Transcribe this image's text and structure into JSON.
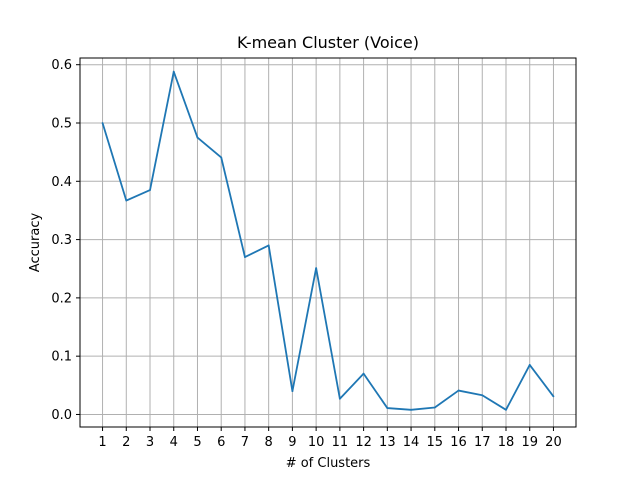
{
  "chart_data": {
    "type": "line",
    "title": "K-mean Cluster (Voice)",
    "xlabel": "# of Clusters",
    "ylabel": "Accuracy",
    "x": [
      1,
      2,
      3,
      4,
      5,
      6,
      7,
      8,
      9,
      10,
      11,
      12,
      13,
      14,
      15,
      16,
      17,
      18,
      19,
      20
    ],
    "series": [
      {
        "values": [
          0.5,
          0.367,
          0.385,
          0.588,
          0.475,
          0.441,
          0.27,
          0.29,
          0.04,
          0.251,
          0.027,
          0.07,
          0.011,
          0.008,
          0.012,
          0.041,
          0.033,
          0.008,
          0.085,
          0.031
        ],
        "color": "#1f77b4"
      }
    ],
    "xlim": [
      0.05,
      20.95
    ],
    "ylim": [
      -0.0215,
      0.6115
    ],
    "yticks": [
      0.0,
      0.1,
      0.2,
      0.3,
      0.4,
      0.5,
      0.6
    ],
    "ytick_labels": [
      "0.0",
      "0.1",
      "0.2",
      "0.3",
      "0.4",
      "0.5",
      "0.6"
    ],
    "xticks": [
      1,
      2,
      3,
      4,
      5,
      6,
      7,
      8,
      9,
      10,
      11,
      12,
      13,
      14,
      15,
      16,
      17,
      18,
      19,
      20
    ],
    "xtick_labels": [
      "1",
      "2",
      "3",
      "4",
      "5",
      "6",
      "7",
      "8",
      "9",
      "10",
      "11",
      "12",
      "13",
      "14",
      "15",
      "16",
      "17",
      "18",
      "19",
      "20"
    ],
    "grid": true,
    "grid_color": "#b0b0b0"
  }
}
